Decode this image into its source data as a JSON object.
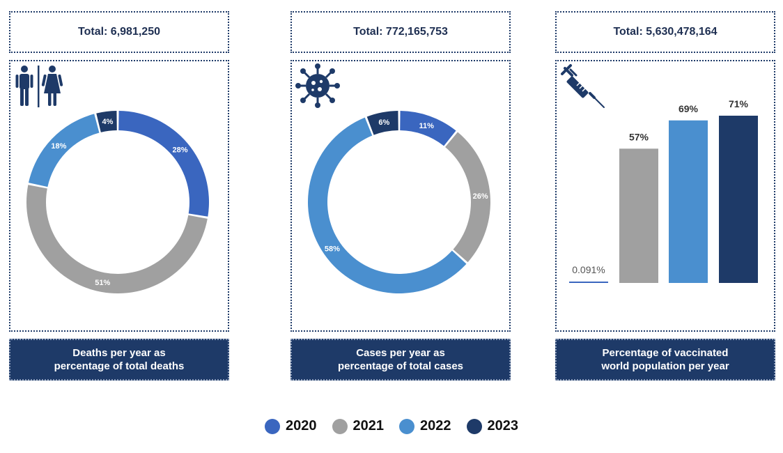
{
  "colors": {
    "y2020": "#3a66bf",
    "y2021": "#a0a0a0",
    "y2022": "#4a8fcf",
    "y2023": "#1e3a68",
    "navy": "#1e3a68"
  },
  "panels": [
    {
      "total": "Total: 6,981,250",
      "caption_line1": "Deaths per year as",
      "caption_line2": "percentage of total deaths",
      "icon": "male-female-icon"
    },
    {
      "total": "Total: 772,165,753",
      "caption_line1": "Cases per year as",
      "caption_line2": "percentage of total cases",
      "icon": "virus-icon"
    },
    {
      "total": "Total: 5,630,478,164",
      "caption_line1": "Percentage of vaccinated",
      "caption_line2": "world population per year",
      "icon": "syringe-icon"
    }
  ],
  "legend": [
    {
      "label": "2020",
      "color": "#3a66bf"
    },
    {
      "label": "2021",
      "color": "#a0a0a0"
    },
    {
      "label": "2022",
      "color": "#4a8fcf"
    },
    {
      "label": "2023",
      "color": "#1e3a68"
    }
  ],
  "chart_data": [
    {
      "type": "pie",
      "categories": [
        "2020",
        "2021",
        "2022",
        "2023"
      ],
      "values": [
        28,
        51,
        18,
        4
      ],
      "labels": [
        "28%",
        "51%",
        "18%",
        "4%"
      ]
    },
    {
      "type": "pie",
      "categories": [
        "2020",
        "2021",
        "2022",
        "2023"
      ],
      "values": [
        11,
        26,
        58,
        6
      ],
      "labels": [
        "11%",
        "26%",
        "58%",
        "6%"
      ]
    },
    {
      "type": "bar",
      "categories": [
        "2020",
        "2021",
        "2022",
        "2023"
      ],
      "values": [
        0.091,
        57,
        69,
        71
      ],
      "labels": [
        "0.091%",
        "57%",
        "69%",
        "71%"
      ],
      "ylim": [
        0,
        80
      ]
    }
  ]
}
